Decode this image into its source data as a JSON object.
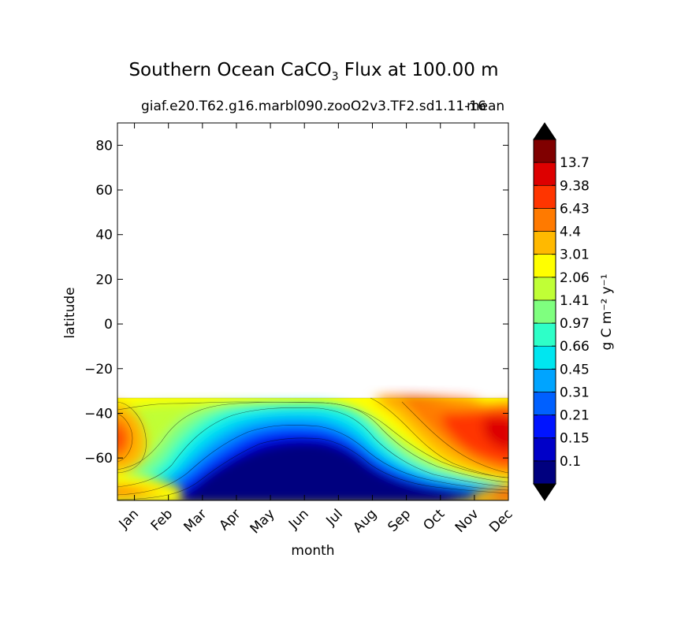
{
  "chart_data": {
    "type": "filled-contour",
    "title": {
      "prefix": "Southern Ocean CaCO",
      "subscript": "3",
      "suffix": " Flux at 100.00 m"
    },
    "subtitle": "giaf.e20.T62.g16.marbl090.zooO2v3.TF2.sd1.11-16",
    "subtitle_overlap": "mean",
    "xlabel": "month",
    "ylabel": "latitude",
    "x_categories": [
      "Jan",
      "Feb",
      "Mar",
      "Apr",
      "May",
      "Jun",
      "Jul",
      "Aug",
      "Sep",
      "Oct",
      "Nov",
      "Dec"
    ],
    "xlim": [
      0.5,
      12.0
    ],
    "ylim": [
      -79,
      90
    ],
    "yticks": [
      80,
      60,
      40,
      20,
      0,
      -20,
      -40,
      -60
    ],
    "ytick_labels": [
      "80",
      "60",
      "40",
      "20",
      "0",
      "−20",
      "−40",
      "−60"
    ],
    "data_lat_range": [
      -78,
      -33
    ],
    "colorbar": {
      "label": "g C m⁻² y⁻¹",
      "levels": [
        "0.1",
        "0.15",
        "0.21",
        "0.31",
        "0.45",
        "0.66",
        "0.97",
        "1.41",
        "2.06",
        "3.01",
        "4.4",
        "6.43",
        "9.38",
        "13.7"
      ],
      "colors": [
        "#00007f",
        "#0000c8",
        "#0014ff",
        "#0060ff",
        "#00a4ff",
        "#00e6f0",
        "#2effc8",
        "#7fff7f",
        "#c0ff36",
        "#ffff00",
        "#ffb900",
        "#ff7a00",
        "#ff3500",
        "#dd0000",
        "#800000"
      ],
      "extend": "both",
      "under_color": "#000000",
      "over_color": "#000000"
    }
  }
}
